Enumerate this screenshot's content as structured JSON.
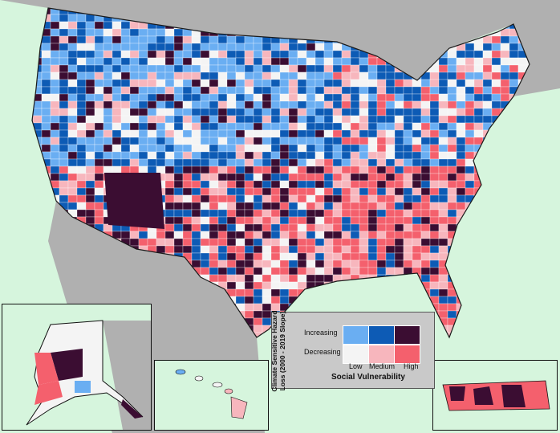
{
  "legend": {
    "axis_title": "Climate Sensitive Hazard Loss (2000 - 2019 Slope)",
    "increasing_label": "Increasing",
    "decreasing_label": "Decreasing",
    "low_label": "Low",
    "medium_label": "Medium",
    "high_label": "High",
    "x_title": "Social Vulnerability",
    "colors": {
      "increasing": [
        "#6aaef2",
        "#0d5bb5",
        "#3b0d32"
      ],
      "decreasing": [
        "#f4f4f4",
        "#f7b6bd",
        "#f4606d"
      ]
    }
  },
  "colors": {
    "ocean": "#d6f5dd",
    "land": "#b0b0b0",
    "border": "#1a1a1a"
  },
  "insets": [
    "alaska",
    "hawaii",
    "puerto-rico"
  ]
}
